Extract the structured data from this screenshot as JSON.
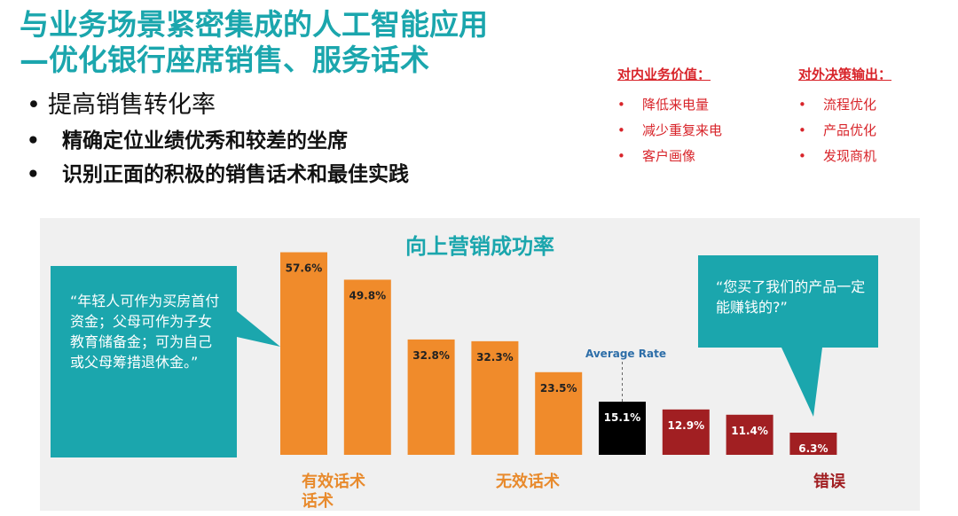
{
  "title": {
    "line1": "与业务场景紧密集成的人工智能应用",
    "line2": "—优化银行座席销售、服务话术"
  },
  "bullets": {
    "main": "提高销售转化率",
    "sub1": "精确定位业绩优秀和较差的坐席",
    "sub2": "识别正面的积极的销售话术和最佳实践",
    "dot": "•"
  },
  "internal": {
    "header": "对内业务价值：",
    "items": [
      "降低来电量",
      "减少重复来电",
      "客户画像"
    ]
  },
  "external": {
    "header": "对外决策输出：",
    "items": [
      "流程优化",
      "产品优化",
      "发现商机"
    ]
  },
  "colors": {
    "teal": "#1ba6ad",
    "orange": "#f08b2b",
    "black": "#000000",
    "dark_red": "#a11f22",
    "red_text": "#d8242a"
  },
  "chart_data": {
    "type": "bar",
    "title": "向上营销成功率",
    "values": [
      57.6,
      49.8,
      32.8,
      32.3,
      23.5,
      15.1,
      12.9,
      11.4,
      6.3
    ],
    "labels": [
      "57.6%",
      "49.8%",
      "32.8%",
      "32.3%",
      "23.5%",
      "15.1%",
      "12.9%",
      "11.4%",
      "6.3%"
    ],
    "groups": [
      "effective",
      "effective",
      "ineffective",
      "ineffective",
      "ineffective",
      "average",
      "error",
      "error",
      "error"
    ],
    "group_colors": {
      "effective": "#f08b2b",
      "ineffective": "#f08b2b",
      "average": "#000000",
      "error": "#a11f22"
    },
    "average_label": "Average Rate",
    "category_labels": {
      "effective": "有效话术\n话术",
      "ineffective": "无效话术",
      "error": "错误"
    },
    "ylim": [
      0,
      60
    ],
    "grid": false
  },
  "bubbles": {
    "left": "“年轻人可作为买房首付资金；父母可作为子女教育储备金；可为自己或父母筹措退休金。”",
    "right": "“您买了我们的产品一定能赚钱的?”"
  }
}
